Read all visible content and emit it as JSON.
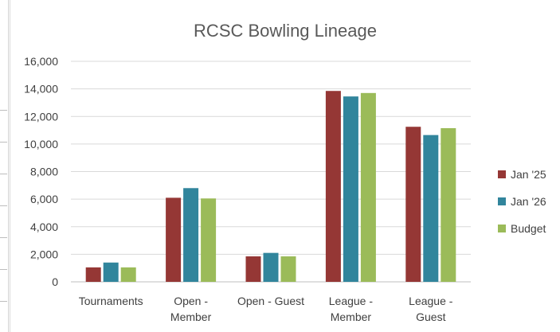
{
  "chart_data": {
    "type": "bar",
    "title": "RCSC Bowling Lineage",
    "xlabel": "",
    "ylabel": "",
    "ylim": [
      0,
      16000
    ],
    "yticks": [
      0,
      2000,
      4000,
      6000,
      8000,
      10000,
      12000,
      14000,
      16000
    ],
    "ytick_labels": [
      "0",
      "2,000",
      "4,000",
      "6,000",
      "8,000",
      "10,000",
      "12,000",
      "14,000",
      "16,000"
    ],
    "grid": true,
    "legend_position": "right",
    "categories": [
      [
        "Tournaments"
      ],
      [
        "Open -",
        "Member"
      ],
      [
        "Open - Guest"
      ],
      [
        "League -",
        "Member"
      ],
      [
        "League -",
        "Guest"
      ]
    ],
    "series": [
      {
        "name": "Jan '25",
        "color": "#953735",
        "values": [
          1050,
          6100,
          1850,
          13850,
          11250
        ]
      },
      {
        "name": "Jan '26",
        "color": "#31859c",
        "values": [
          1400,
          6800,
          2100,
          13450,
          10650
        ]
      },
      {
        "name": "Budget",
        "color": "#9bbb59",
        "values": [
          1050,
          6050,
          1850,
          13700,
          11150
        ]
      }
    ]
  }
}
